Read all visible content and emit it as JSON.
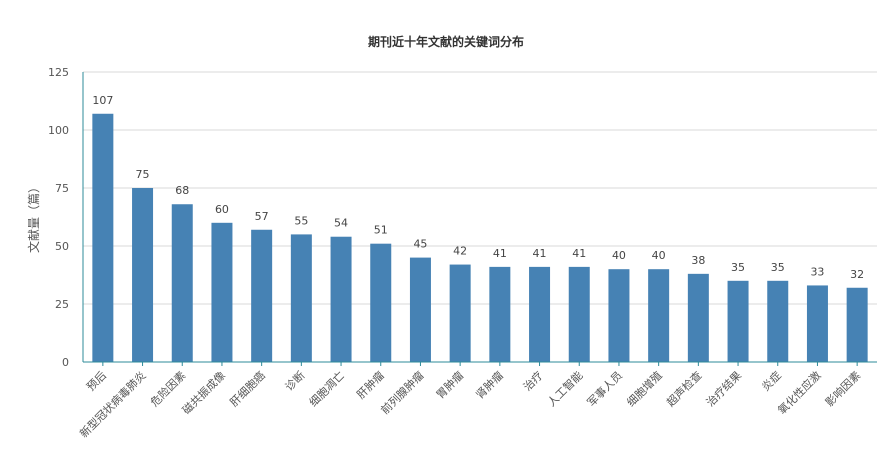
{
  "chart_data": {
    "type": "bar",
    "title": "期刊近十年文献的关键词分布",
    "xlabel": "",
    "ylabel": "文献量（篇）",
    "ylim": [
      0,
      125
    ],
    "yticks": [
      0,
      25,
      50,
      75,
      100,
      125
    ],
    "grid": true,
    "legend": "none",
    "categories": [
      "预后",
      "新型冠状病毒肺炎",
      "危险因素",
      "磁共振成像",
      "肝细胞癌",
      "诊断",
      "细胞凋亡",
      "肝肿瘤",
      "前列腺肿瘤",
      "胃肿瘤",
      "肾肿瘤",
      "治疗",
      "人工智能",
      "军事人员",
      "细胞增殖",
      "超声检查",
      "治疗结果",
      "炎症",
      "氧化性应激",
      "影响因素"
    ],
    "values": [
      107,
      75,
      68,
      60,
      57,
      55,
      54,
      51,
      45,
      42,
      41,
      41,
      41,
      40,
      40,
      38,
      35,
      35,
      33,
      32
    ],
    "colors": {
      "bar": "#4682b4",
      "axis": "#2e8b9a",
      "grid": "#d9d9d9"
    }
  }
}
